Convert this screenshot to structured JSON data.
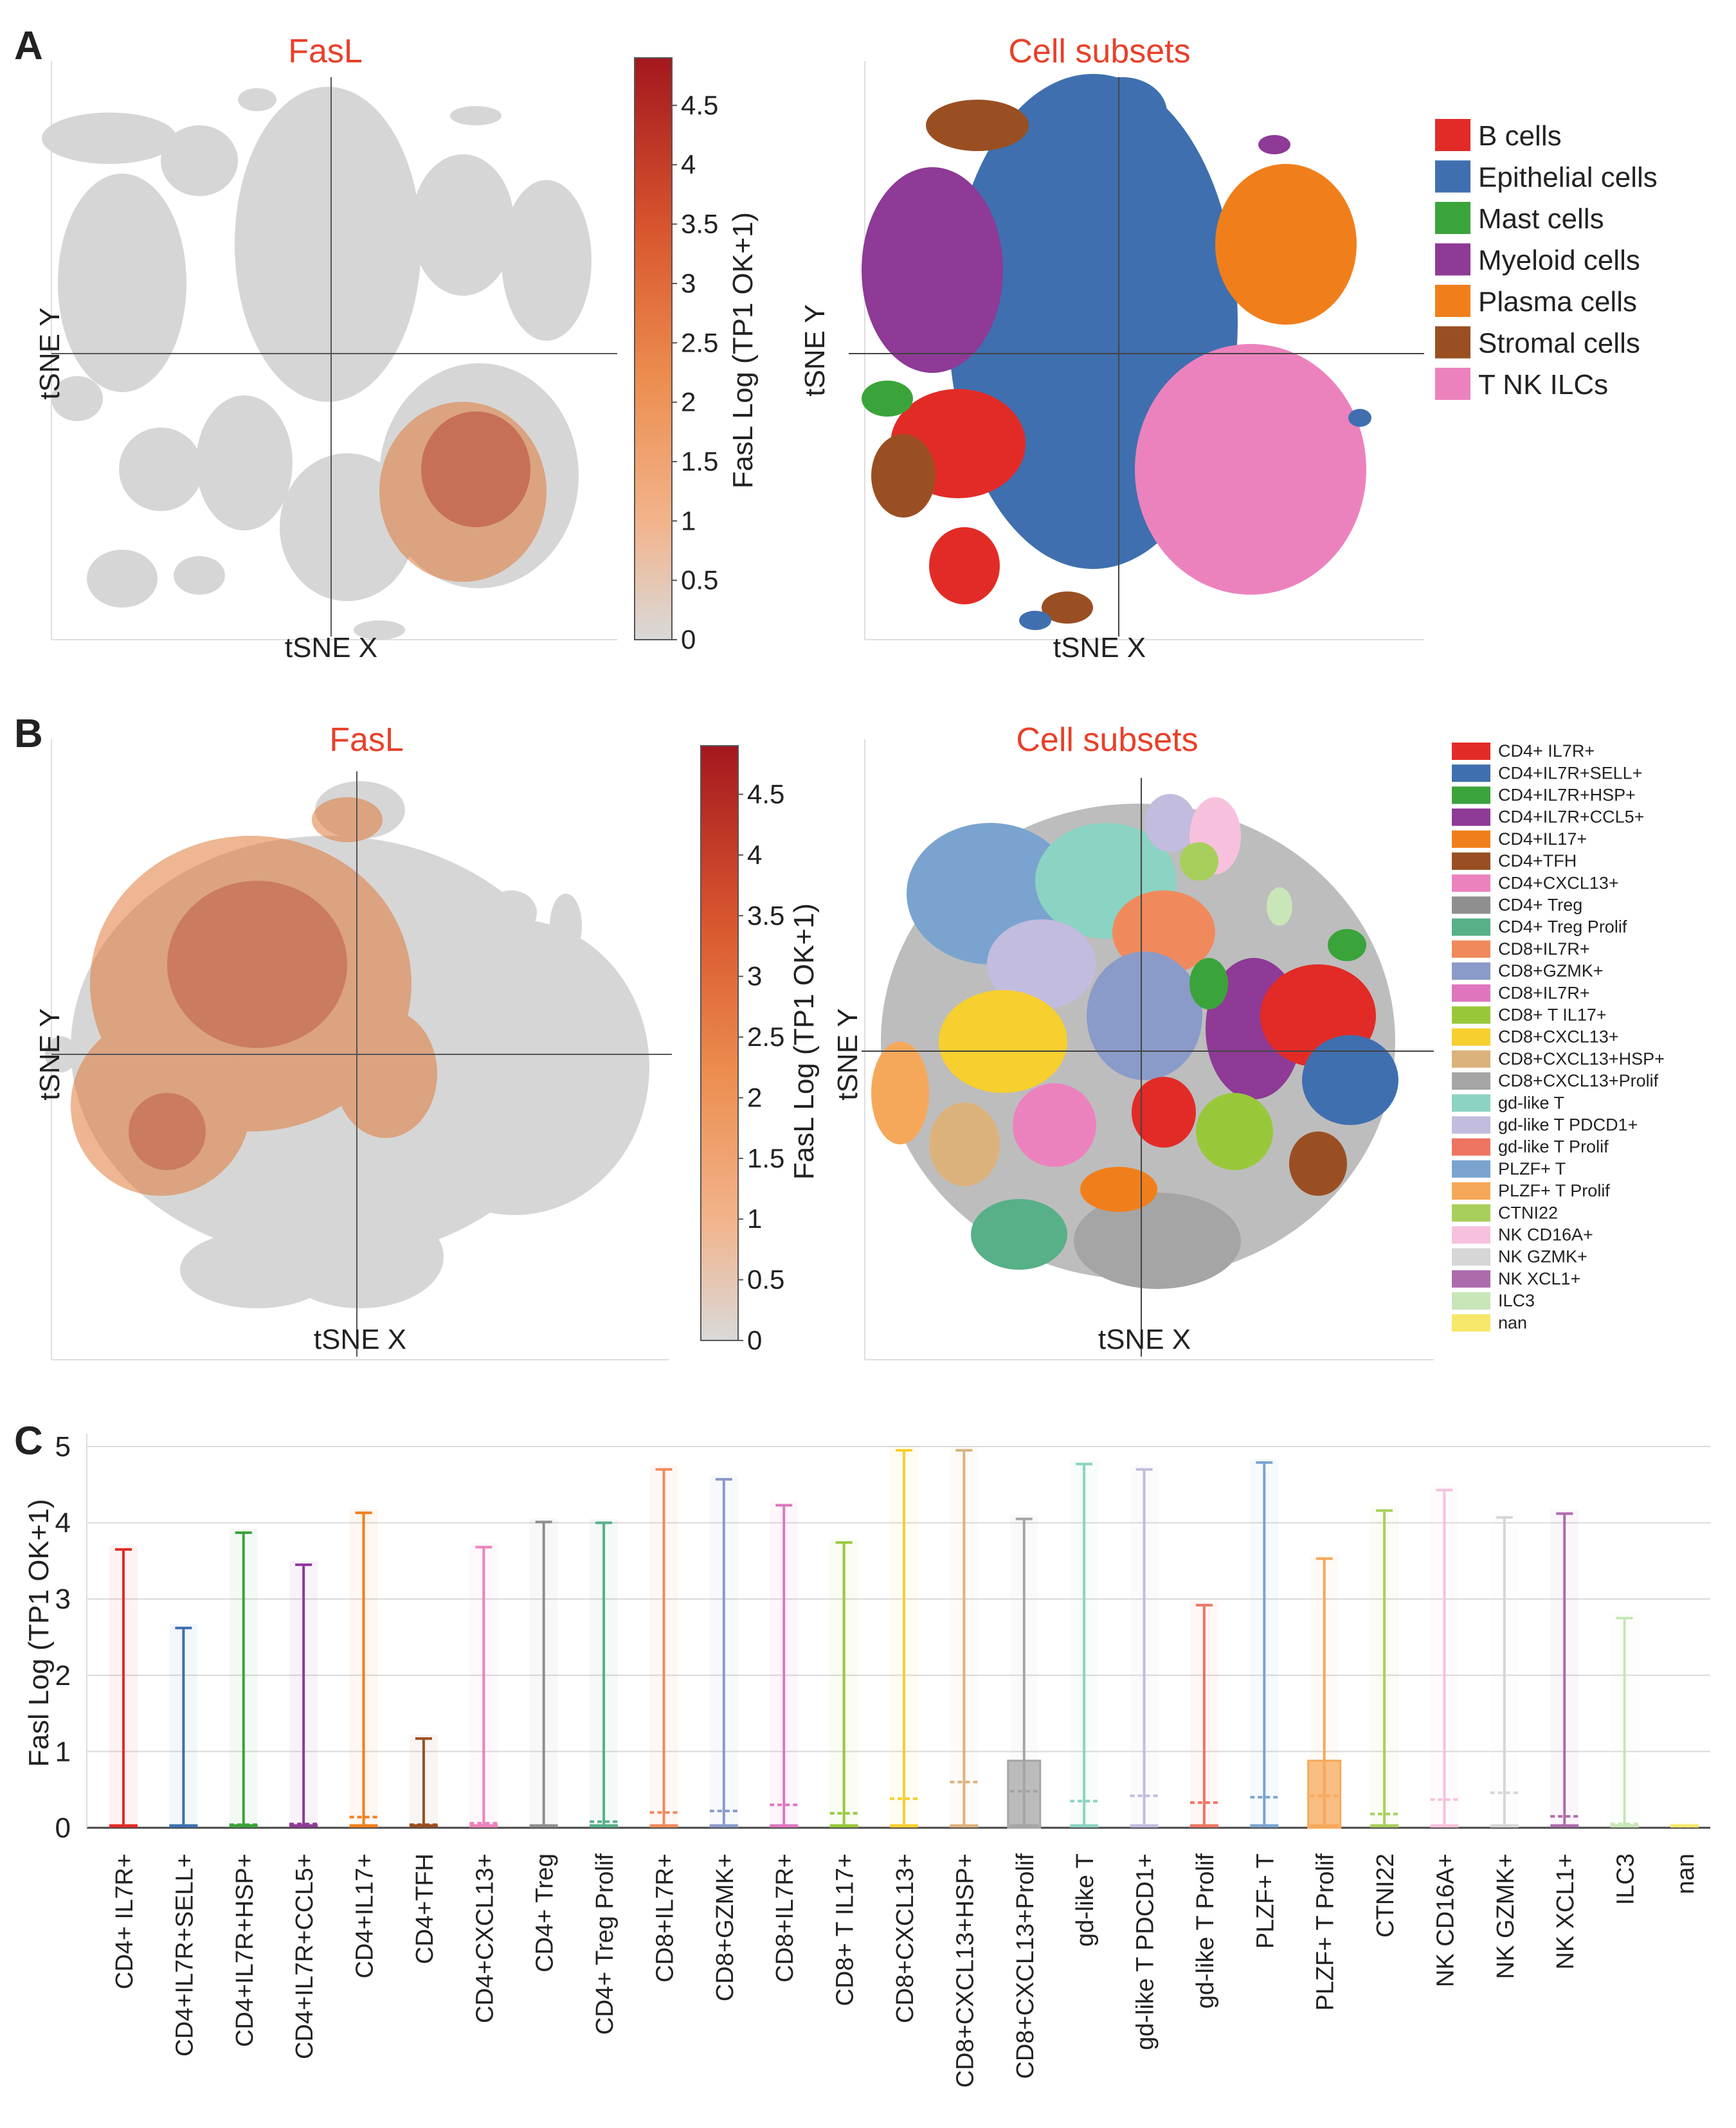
{
  "panel_letters": {
    "a": "A",
    "b": "B",
    "c": "C"
  },
  "axis_text": {
    "tsne_x": "tSNE X",
    "tsne_y": "tSNE Y"
  },
  "colors": {
    "title_red": "#e8402a",
    "axis": "#444444",
    "grid": "#dddddd",
    "background_dot": "#d4d4d4"
  },
  "chart_data": [
    {
      "panel": "A-left",
      "type": "scatter",
      "title": "FasL",
      "xlabel": "tSNE X",
      "ylabel": "tSNE Y",
      "colorbar": {
        "label": "FasL Log (TP1 OK+1)",
        "min": 0,
        "max": 4.9,
        "ticks": [
          0,
          0.5,
          1,
          1.5,
          2,
          2.5,
          3,
          3.5,
          4,
          4.5
        ],
        "tick_labels": [
          "0",
          "0.5",
          "1",
          "1.5",
          "2",
          "2.5",
          "3",
          "3.5",
          "4",
          "4.5"
        ]
      }
    },
    {
      "panel": "A-right",
      "type": "scatter",
      "title": "Cell subsets",
      "xlabel": "tSNE X",
      "ylabel": "tSNE Y",
      "legend": [
        {
          "label": "B cells",
          "color": "#e22b26"
        },
        {
          "label": "Epithelial cells",
          "color": "#3f6faf"
        },
        {
          "label": "Mast cells",
          "color": "#3aa43a"
        },
        {
          "label": "Myeloid cells",
          "color": "#8e3a96"
        },
        {
          "label": "Plasma cells",
          "color": "#f07f1b"
        },
        {
          "label": "Stromal cells",
          "color": "#9a4f22"
        },
        {
          "label": "T NK ILCs",
          "color": "#ec82bd"
        }
      ]
    },
    {
      "panel": "B-left",
      "type": "scatter",
      "title": "FasL",
      "xlabel": "tSNE X",
      "ylabel": "tSNE Y",
      "colorbar": {
        "label": "FasL Log (TP1 OK+1)",
        "min": 0,
        "max": 4.9,
        "ticks": [
          0,
          0.5,
          1,
          1.5,
          2,
          2.5,
          3,
          3.5,
          4,
          4.5
        ],
        "tick_labels": [
          "0",
          "0.5",
          "1",
          "1.5",
          "2",
          "2.5",
          "3",
          "3.5",
          "4",
          "4.5"
        ]
      }
    },
    {
      "panel": "B-right",
      "type": "scatter",
      "title": "Cell subsets",
      "xlabel": "tSNE X",
      "ylabel": "tSNE Y",
      "legend": [
        {
          "label": "CD4+ IL7R+",
          "color": "#e22b26"
        },
        {
          "label": "CD4+IL7R+SELL+",
          "color": "#3f6faf"
        },
        {
          "label": "CD4+IL7R+HSP+",
          "color": "#3aa43a"
        },
        {
          "label": "CD4+IL7R+CCL5+",
          "color": "#8e3a96"
        },
        {
          "label": "CD4+IL17+",
          "color": "#f07f1b"
        },
        {
          "label": "CD4+TFH",
          "color": "#9a4f22"
        },
        {
          "label": "CD4+CXCL13+",
          "color": "#ec82bd"
        },
        {
          "label": "CD4+ Treg",
          "color": "#8f8f8f"
        },
        {
          "label": "CD4+ Treg Prolif",
          "color": "#57b088"
        },
        {
          "label": "CD8+IL7R+",
          "color": "#f08a5d"
        },
        {
          "label": "CD8+GZMK+",
          "color": "#8a9bc9"
        },
        {
          "label": "CD8+IL7R+",
          "color": "#df76bd"
        },
        {
          "label": "CD8+ T IL17+",
          "color": "#98c83a"
        },
        {
          "label": "CD8+CXCL13+",
          "color": "#f7cf2e"
        },
        {
          "label": "CD8+CXCL13+HSP+",
          "color": "#dcb27c"
        },
        {
          "label": "CD8+CXCL13+Prolif",
          "color": "#a5a5a5"
        },
        {
          "label": "gd-like T",
          "color": "#8bd3c2"
        },
        {
          "label": "gd-like T PDCD1+",
          "color": "#c2bcde"
        },
        {
          "label": "gd-like T Prolif",
          "color": "#ee7462"
        },
        {
          "label": "PLZF+ T",
          "color": "#7aa4cf"
        },
        {
          "label": "PLZF+ T Prolif",
          "color": "#f6a85a"
        },
        {
          "label": "CTNI22",
          "color": "#a8cf5b"
        },
        {
          "label": "NK CD16A+",
          "color": "#f7c1dd"
        },
        {
          "label": "NK GZMK+",
          "color": "#d6d6d6"
        },
        {
          "label": "NK XCL1+",
          "color": "#ad6bac"
        },
        {
          "label": "ILC3",
          "color": "#c8e6b8"
        },
        {
          "label": "nan",
          "color": "#f7e76a"
        }
      ]
    },
    {
      "panel": "C",
      "type": "box",
      "title": "",
      "xlabel": "",
      "ylabel": "Fasl Log (TP1 OK+1)",
      "ylim": [
        0,
        5
      ],
      "yticks": [
        0,
        1,
        2,
        3,
        4,
        5
      ],
      "ytick_labels": [
        "0",
        "1",
        "2",
        "3",
        "4",
        "5"
      ],
      "categories": [
        "CD4+ IL7R+",
        "CD4+IL7R+SELL+",
        "CD4+IL7R+HSP+",
        "CD4+IL7R+CCL5+",
        "CD4+IL17+",
        "CD4+TFH",
        "CD4+CXCL13+",
        "CD4+ Treg",
        "CD4+ Treg Prolif",
        "CD8+IL7R+",
        "CD8+GZMK+",
        "CD8+IL7R+",
        "CD8+ T IL17+",
        "CD8+CXCL13+",
        "CD8+CXCL13+HSP+",
        "CD8+CXCL13+Prolif",
        "gd-like T",
        "gd-like T PDCD1+",
        "gd-like T Prolif",
        "PLZF+ T",
        "PLZF+ T Prolif",
        "CTNI22",
        "NK CD16A+",
        "NK GZMK+",
        "NK XCL1+",
        "ILC3",
        "nan"
      ],
      "max": [
        3.65,
        2.62,
        3.87,
        3.45,
        4.13,
        1.17,
        3.68,
        4.01,
        4.0,
        4.7,
        4.57,
        4.23,
        3.74,
        4.95,
        4.95,
        4.05,
        4.77,
        4.7,
        2.92,
        4.79,
        3.53,
        4.16,
        4.43,
        4.07,
        4.12,
        2.75,
        0.03
      ],
      "q3": [
        0.0,
        0.0,
        0.0,
        0.0,
        0.0,
        0.0,
        0.0,
        0.0,
        0.0,
        0.0,
        0.0,
        0.0,
        0.0,
        0.0,
        0.0,
        0.88,
        0.0,
        0.0,
        0.0,
        0.0,
        0.88,
        0.0,
        0.0,
        0.0,
        0.0,
        0.0,
        0.0
      ],
      "mean": [
        0.02,
        0.02,
        0.04,
        0.05,
        0.14,
        0.04,
        0.06,
        0.03,
        0.08,
        0.2,
        0.22,
        0.3,
        0.19,
        0.38,
        0.6,
        0.48,
        0.35,
        0.42,
        0.33,
        0.4,
        0.42,
        0.18,
        0.37,
        0.46,
        0.15,
        0.05,
        0.02
      ],
      "colors": [
        "#e22b26",
        "#3f6faf",
        "#3aa43a",
        "#8e3a96",
        "#f07f1b",
        "#9a4f22",
        "#ec82bd",
        "#8f8f8f",
        "#57b088",
        "#f08a5d",
        "#8a9bc9",
        "#df76bd",
        "#98c83a",
        "#f7cf2e",
        "#dcb27c",
        "#a5a5a5",
        "#8bd3c2",
        "#c2bcde",
        "#ee7462",
        "#7aa4cf",
        "#f6a85a",
        "#a8cf5b",
        "#f7c1dd",
        "#d6d6d6",
        "#ad6bac",
        "#c8e6b8",
        "#f7e76a"
      ]
    }
  ]
}
